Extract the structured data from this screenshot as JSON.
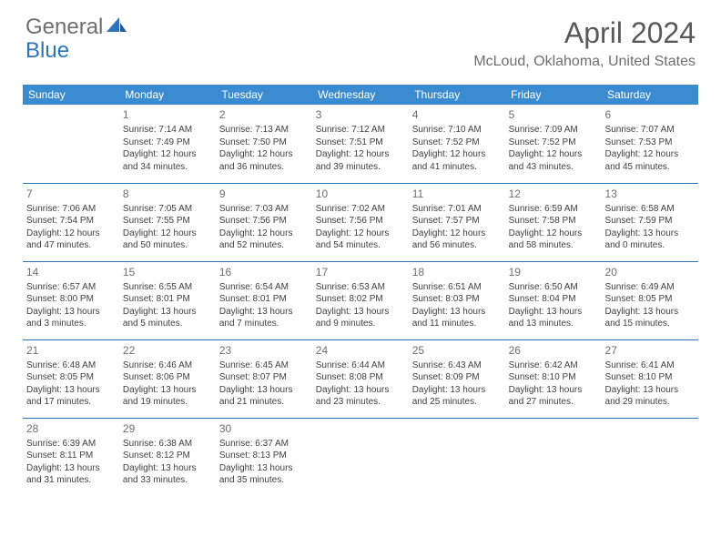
{
  "brand": {
    "part1": "General",
    "part2": "Blue"
  },
  "title": "April 2024",
  "location": "McLoud, Oklahoma, United States",
  "colors": {
    "header_bg": "#3b8bd0",
    "header_text": "#ffffff",
    "grid_line": "#2e74b5",
    "text": "#404040",
    "title_text": "#595959",
    "subtitle_text": "#6e6e6e",
    "logo_gray": "#6e6e6e",
    "logo_blue": "#2e74b5"
  },
  "weekdays": [
    "Sunday",
    "Monday",
    "Tuesday",
    "Wednesday",
    "Thursday",
    "Friday",
    "Saturday"
  ],
  "weeks": [
    [
      null,
      {
        "n": "1",
        "sr": "Sunrise: 7:14 AM",
        "ss": "Sunset: 7:49 PM",
        "d1": "Daylight: 12 hours",
        "d2": "and 34 minutes."
      },
      {
        "n": "2",
        "sr": "Sunrise: 7:13 AM",
        "ss": "Sunset: 7:50 PM",
        "d1": "Daylight: 12 hours",
        "d2": "and 36 minutes."
      },
      {
        "n": "3",
        "sr": "Sunrise: 7:12 AM",
        "ss": "Sunset: 7:51 PM",
        "d1": "Daylight: 12 hours",
        "d2": "and 39 minutes."
      },
      {
        "n": "4",
        "sr": "Sunrise: 7:10 AM",
        "ss": "Sunset: 7:52 PM",
        "d1": "Daylight: 12 hours",
        "d2": "and 41 minutes."
      },
      {
        "n": "5",
        "sr": "Sunrise: 7:09 AM",
        "ss": "Sunset: 7:52 PM",
        "d1": "Daylight: 12 hours",
        "d2": "and 43 minutes."
      },
      {
        "n": "6",
        "sr": "Sunrise: 7:07 AM",
        "ss": "Sunset: 7:53 PM",
        "d1": "Daylight: 12 hours",
        "d2": "and 45 minutes."
      }
    ],
    [
      {
        "n": "7",
        "sr": "Sunrise: 7:06 AM",
        "ss": "Sunset: 7:54 PM",
        "d1": "Daylight: 12 hours",
        "d2": "and 47 minutes."
      },
      {
        "n": "8",
        "sr": "Sunrise: 7:05 AM",
        "ss": "Sunset: 7:55 PM",
        "d1": "Daylight: 12 hours",
        "d2": "and 50 minutes."
      },
      {
        "n": "9",
        "sr": "Sunrise: 7:03 AM",
        "ss": "Sunset: 7:56 PM",
        "d1": "Daylight: 12 hours",
        "d2": "and 52 minutes."
      },
      {
        "n": "10",
        "sr": "Sunrise: 7:02 AM",
        "ss": "Sunset: 7:56 PM",
        "d1": "Daylight: 12 hours",
        "d2": "and 54 minutes."
      },
      {
        "n": "11",
        "sr": "Sunrise: 7:01 AM",
        "ss": "Sunset: 7:57 PM",
        "d1": "Daylight: 12 hours",
        "d2": "and 56 minutes."
      },
      {
        "n": "12",
        "sr": "Sunrise: 6:59 AM",
        "ss": "Sunset: 7:58 PM",
        "d1": "Daylight: 12 hours",
        "d2": "and 58 minutes."
      },
      {
        "n": "13",
        "sr": "Sunrise: 6:58 AM",
        "ss": "Sunset: 7:59 PM",
        "d1": "Daylight: 13 hours",
        "d2": "and 0 minutes."
      }
    ],
    [
      {
        "n": "14",
        "sr": "Sunrise: 6:57 AM",
        "ss": "Sunset: 8:00 PM",
        "d1": "Daylight: 13 hours",
        "d2": "and 3 minutes."
      },
      {
        "n": "15",
        "sr": "Sunrise: 6:55 AM",
        "ss": "Sunset: 8:01 PM",
        "d1": "Daylight: 13 hours",
        "d2": "and 5 minutes."
      },
      {
        "n": "16",
        "sr": "Sunrise: 6:54 AM",
        "ss": "Sunset: 8:01 PM",
        "d1": "Daylight: 13 hours",
        "d2": "and 7 minutes."
      },
      {
        "n": "17",
        "sr": "Sunrise: 6:53 AM",
        "ss": "Sunset: 8:02 PM",
        "d1": "Daylight: 13 hours",
        "d2": "and 9 minutes."
      },
      {
        "n": "18",
        "sr": "Sunrise: 6:51 AM",
        "ss": "Sunset: 8:03 PM",
        "d1": "Daylight: 13 hours",
        "d2": "and 11 minutes."
      },
      {
        "n": "19",
        "sr": "Sunrise: 6:50 AM",
        "ss": "Sunset: 8:04 PM",
        "d1": "Daylight: 13 hours",
        "d2": "and 13 minutes."
      },
      {
        "n": "20",
        "sr": "Sunrise: 6:49 AM",
        "ss": "Sunset: 8:05 PM",
        "d1": "Daylight: 13 hours",
        "d2": "and 15 minutes."
      }
    ],
    [
      {
        "n": "21",
        "sr": "Sunrise: 6:48 AM",
        "ss": "Sunset: 8:05 PM",
        "d1": "Daylight: 13 hours",
        "d2": "and 17 minutes."
      },
      {
        "n": "22",
        "sr": "Sunrise: 6:46 AM",
        "ss": "Sunset: 8:06 PM",
        "d1": "Daylight: 13 hours",
        "d2": "and 19 minutes."
      },
      {
        "n": "23",
        "sr": "Sunrise: 6:45 AM",
        "ss": "Sunset: 8:07 PM",
        "d1": "Daylight: 13 hours",
        "d2": "and 21 minutes."
      },
      {
        "n": "24",
        "sr": "Sunrise: 6:44 AM",
        "ss": "Sunset: 8:08 PM",
        "d1": "Daylight: 13 hours",
        "d2": "and 23 minutes."
      },
      {
        "n": "25",
        "sr": "Sunrise: 6:43 AM",
        "ss": "Sunset: 8:09 PM",
        "d1": "Daylight: 13 hours",
        "d2": "and 25 minutes."
      },
      {
        "n": "26",
        "sr": "Sunrise: 6:42 AM",
        "ss": "Sunset: 8:10 PM",
        "d1": "Daylight: 13 hours",
        "d2": "and 27 minutes."
      },
      {
        "n": "27",
        "sr": "Sunrise: 6:41 AM",
        "ss": "Sunset: 8:10 PM",
        "d1": "Daylight: 13 hours",
        "d2": "and 29 minutes."
      }
    ],
    [
      {
        "n": "28",
        "sr": "Sunrise: 6:39 AM",
        "ss": "Sunset: 8:11 PM",
        "d1": "Daylight: 13 hours",
        "d2": "and 31 minutes."
      },
      {
        "n": "29",
        "sr": "Sunrise: 6:38 AM",
        "ss": "Sunset: 8:12 PM",
        "d1": "Daylight: 13 hours",
        "d2": "and 33 minutes."
      },
      {
        "n": "30",
        "sr": "Sunrise: 6:37 AM",
        "ss": "Sunset: 8:13 PM",
        "d1": "Daylight: 13 hours",
        "d2": "and 35 minutes."
      },
      null,
      null,
      null,
      null
    ]
  ]
}
